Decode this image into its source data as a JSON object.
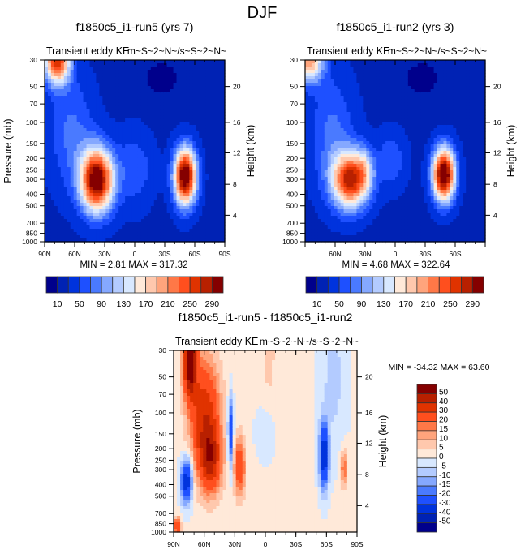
{
  "figure_title": "DJF",
  "chart_data": [
    {
      "type": "heatmap",
      "title": "f1850c5_i1-run5 (yrs 7)",
      "left_label": "Transient eddy KE",
      "right_label": "m~S~2~N~/s~S~2~N~",
      "xlabel": "",
      "ylabel": "Pressure (mb)",
      "ylabel_right": "Height (km)",
      "x_ticks": [
        "90N",
        "60N",
        "30N",
        "0",
        "30S",
        "60S",
        "90S"
      ],
      "y_ticks": [
        "30",
        "50",
        "70",
        "100",
        "150",
        "200",
        "250",
        "300",
        "400",
        "500",
        "700",
        "850",
        "1000"
      ],
      "y_ticks_right": [
        "20",
        "16",
        "12",
        "8",
        "4"
      ],
      "xlim": [
        "90N",
        "90S"
      ],
      "ylim": [
        1000,
        30
      ],
      "stats": "MIN =   2.81  MAX = 317.32",
      "min": 2.81,
      "max": 317.32,
      "colorbar": {
        "orientation": "horizontal",
        "labels": [
          "10",
          "50",
          "90",
          "130",
          "170",
          "210",
          "250",
          "290"
        ],
        "levels": [
          10,
          30,
          50,
          70,
          90,
          110,
          130,
          150,
          170,
          190,
          210,
          230,
          250,
          270,
          290
        ]
      },
      "features": [
        {
          "desc": "jet maximum NH",
          "lat": "40N",
          "pressure_mb": 275,
          "value_range": "290+"
        },
        {
          "desc": "jet maximum SH",
          "lat": "50S",
          "pressure_mb": 270,
          "value_range": "290+"
        },
        {
          "desc": "stratospheric high-latitude max",
          "lat": "75N",
          "pressure_mb": 30,
          "value_range": "230-250"
        }
      ]
    },
    {
      "type": "heatmap",
      "title": "f1850c5_i1-run2 (yrs 3)",
      "left_label": "Transient eddy KE",
      "right_label": "m~S~2~N~/s~S~2~N~",
      "xlabel": "",
      "ylabel": "",
      "ylabel_right": "Height (km)",
      "x_ticks": [
        "60N",
        "30N",
        "0",
        "30S",
        "60S"
      ],
      "y_ticks": [
        "30",
        "50",
        "70",
        "100",
        "150",
        "200",
        "250",
        "300",
        "400",
        "500",
        "700",
        "850",
        "1000"
      ],
      "y_ticks_right": [
        "20",
        "16",
        "12",
        "8",
        "4"
      ],
      "xlim": [
        "90N",
        "90S"
      ],
      "ylim": [
        1000,
        30
      ],
      "stats": "MIN =   4.68  MAX = 322.64",
      "min": 4.68,
      "max": 322.64,
      "colorbar": {
        "orientation": "horizontal",
        "labels": [
          "10",
          "50",
          "90",
          "130",
          "170",
          "210",
          "250",
          "290"
        ],
        "levels": [
          10,
          30,
          50,
          70,
          90,
          110,
          130,
          150,
          170,
          190,
          210,
          230,
          250,
          270,
          290
        ]
      },
      "features": [
        {
          "desc": "jet maximum NH",
          "lat": "35N",
          "pressure_mb": 280,
          "value_range": "250-270"
        },
        {
          "desc": "jet maximum SH",
          "lat": "50S",
          "pressure_mb": 265,
          "value_range": "290+"
        },
        {
          "desc": "stratospheric high-latitude max",
          "lat": "85N",
          "pressure_mb": 30,
          "value_range": "170-190"
        }
      ]
    },
    {
      "type": "heatmap",
      "title": "f1850c5_i1-run5 - f1850c5_i1-run2",
      "left_label": "Transient eddy KE",
      "right_label": "m~S~2~N~/s~S~2~N~",
      "xlabel": "",
      "ylabel": "Pressure (mb)",
      "ylabel_right": "Height (km)",
      "x_ticks": [
        "90N",
        "60N",
        "30N",
        "0",
        "30S",
        "60S",
        "90S"
      ],
      "y_ticks": [
        "30",
        "50",
        "70",
        "100",
        "150",
        "200",
        "250",
        "300",
        "400",
        "500",
        "700",
        "850",
        "1000"
      ],
      "y_ticks_right": [
        "20",
        "16",
        "12",
        "8",
        "4"
      ],
      "xlim": [
        "90N",
        "90S"
      ],
      "ylim": [
        1000,
        30
      ],
      "stats": "MIN = -34.32  MAX =  63.60",
      "min": -34.32,
      "max": 63.6,
      "colorbar": {
        "orientation": "vertical",
        "labels": [
          "50",
          "40",
          "30",
          "20",
          "15",
          "10",
          "5",
          "0",
          "-5",
          "-10",
          "-15",
          "-20",
          "-30",
          "-40",
          "-50"
        ],
        "levels": [
          -50,
          -40,
          -30,
          -20,
          -15,
          -10,
          -5,
          0,
          5,
          10,
          15,
          20,
          30,
          40,
          50
        ]
      },
      "features": [
        {
          "desc": "positive max stratosphere",
          "lat": "75N",
          "pressure_mb": 40,
          "value_range": "50+"
        },
        {
          "desc": "negative min upper troposphere",
          "lat": "80N",
          "pressure_mb": 350,
          "value_range": "-30 to -40"
        },
        {
          "desc": "negative min SH jet",
          "lat": "55S",
          "pressure_mb": 250,
          "value_range": "-30 to -40"
        }
      ]
    }
  ],
  "palette": [
    "#00008c",
    "#0022b4",
    "#0033dd",
    "#1e50ff",
    "#4a7aff",
    "#85a8ff",
    "#b3cbff",
    "#d8e8ff",
    "#ffe9d9",
    "#ffc8ad",
    "#ffa47c",
    "#ff7847",
    "#ff4f1e",
    "#e03300",
    "#b82000",
    "#850000"
  ]
}
